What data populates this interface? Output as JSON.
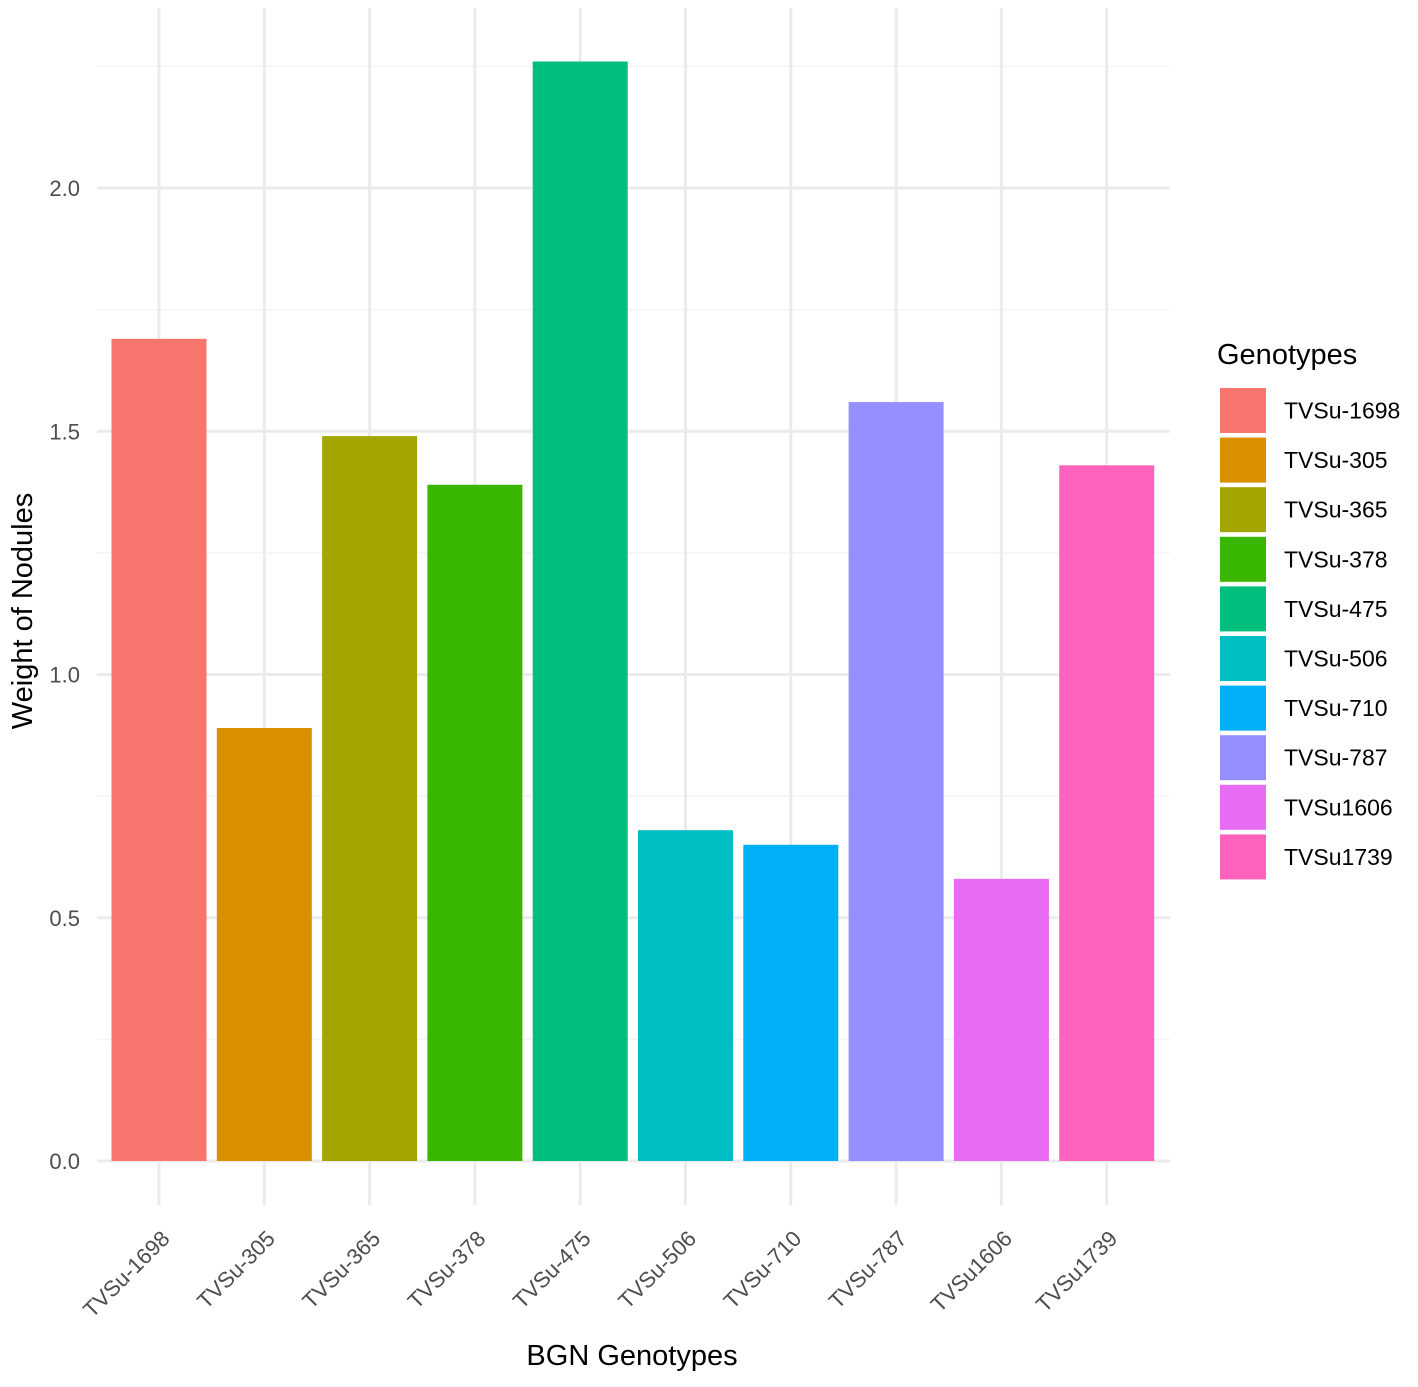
{
  "chart_data": {
    "type": "bar",
    "title": "",
    "xlabel": "BGN Genotypes",
    "ylabel": "Weight of Nodules",
    "categories": [
      "TVSu-1698",
      "TVSu-305",
      "TVSu-365",
      "TVSu-378",
      "TVSu-475",
      "TVSu-506",
      "TVSu-710",
      "TVSu-787",
      "TVSu1606",
      "TVSu1739"
    ],
    "values": [
      1.69,
      0.89,
      1.49,
      1.39,
      2.26,
      0.68,
      0.65,
      1.56,
      0.58,
      1.43
    ],
    "colors": [
      "#F8766D",
      "#D89000",
      "#A3A500",
      "#39B600",
      "#00BF7D",
      "#00BFC4",
      "#00B0F6",
      "#9590FF",
      "#E76BF3",
      "#FF62BC"
    ],
    "ylim": [
      0,
      2.3
    ],
    "yticks": [
      0.0,
      0.5,
      1.0,
      1.5,
      2.0
    ],
    "ytick_labels": [
      "0.0",
      "0.5",
      "1.0",
      "1.5",
      "2.0"
    ],
    "grid": true,
    "legend": {
      "title": "Genotypes",
      "placement": "right",
      "entries": [
        "TVSu-1698",
        "TVSu-305",
        "TVSu-365",
        "TVSu-378",
        "TVSu-475",
        "TVSu-506",
        "TVSu-710",
        "TVSu-787",
        "TVSu1606",
        "TVSu1739"
      ]
    }
  }
}
